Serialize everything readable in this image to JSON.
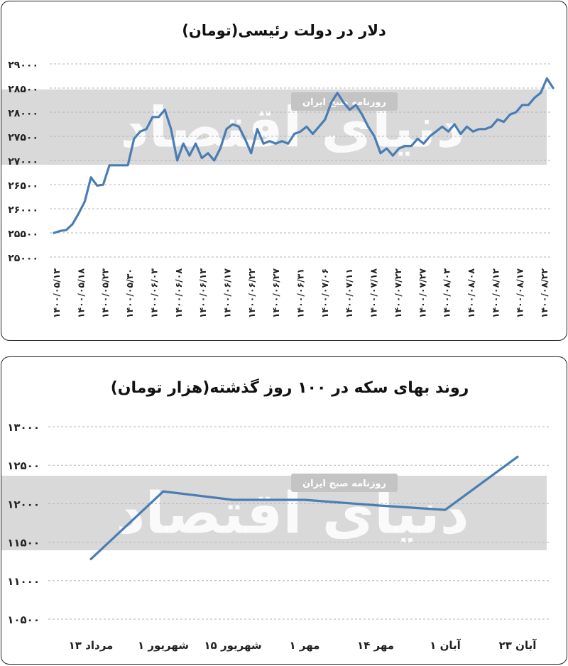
{
  "watermark": {
    "brand": "دنیای اقتصاد",
    "badge": "روزنامه صبح ایران"
  },
  "chart_data": [
    {
      "type": "line",
      "title": "دلار در دولت رئیسی(تومان)",
      "xlabel": "",
      "ylabel": "",
      "ylim": [
        25000,
        29000
      ],
      "y_ticks": [
        "۲۵۰۰۰",
        "۲۵۵۰۰",
        "۲۶۰۰۰",
        "۲۶۵۰۰",
        "۲۷۰۰۰",
        "۲۷۵۰۰",
        "۲۸۰۰۰",
        "۲۸۵۰۰",
        "۲۹۰۰۰"
      ],
      "x_ticks": [
        "۱۴۰۰/۰۵/۱۳",
        "۱۴۰۰/۰۵/۱۸",
        "۱۴۰۰/۰۵/۲۳",
        "۱۴۰۰/۰۵/۳۰",
        "۱۴۰۰/۰۶/۰۳",
        "۱۴۰۰/۰۶/۰۸",
        "۱۴۰۰/۰۶/۱۳",
        "۱۴۰۰/۰۶/۱۷",
        "۱۴۰۰/۰۶/۲۲",
        "۱۴۰۰/۰۶/۲۷",
        "۱۴۰۰/۰۶/۳۱",
        "۱۴۰۰/۰۷/۰۶",
        "۱۴۰۰/۰۷/۱۱",
        "۱۴۰۰/۰۷/۱۸",
        "۱۴۰۰/۰۷/۲۲",
        "۱۴۰۰/۰۷/۲۷",
        "۱۴۰۰/۰۸/۰۳",
        "۱۴۰۰/۰۸/۰۸",
        "۱۴۰۰/۰۸/۱۲",
        "۱۴۰۰/۰۸/۱۷",
        "۱۴۰۰/۰۸/۲۲"
      ],
      "values": [
        25500,
        25540,
        25560,
        25680,
        25900,
        26150,
        26650,
        26480,
        26500,
        26900,
        26900,
        26900,
        26900,
        27450,
        27600,
        27650,
        27900,
        27900,
        28050,
        27650,
        27000,
        27350,
        27100,
        27350,
        27050,
        27150,
        27000,
        27250,
        27650,
        27750,
        27700,
        27450,
        27150,
        27650,
        27350,
        27400,
        27350,
        27400,
        27350,
        27550,
        27600,
        27700,
        27550,
        27700,
        27850,
        28200,
        28400,
        28200,
        28050,
        28150,
        27950,
        27700,
        27500,
        27150,
        27250,
        27100,
        27250,
        27300,
        27300,
        27450,
        27350,
        27500,
        27600,
        27700,
        27600,
        27750,
        27550,
        27700,
        27600,
        27650,
        27650,
        27700,
        27850,
        27800,
        27950,
        28000,
        28150,
        28150,
        28300,
        28400,
        28700,
        28500
      ]
    },
    {
      "type": "line",
      "title": "روند بهای سکه در ۱۰۰ روز گذشته(هزار تومان)",
      "xlabel": "",
      "ylabel": "",
      "ylim": [
        10500,
        13000
      ],
      "y_ticks": [
        "۱۰۵۰۰",
        "۱۱۰۰۰",
        "۱۱۵۰۰",
        "۱۲۰۰۰",
        "۱۲۵۰۰",
        "۱۳۰۰۰"
      ],
      "categories": [
        "۱۳ مرداد",
        "۱ شهریور",
        "۱۵ شهریور",
        "۱ مهر",
        "۱۴ مهر",
        "۱ آبان",
        "۲۳ آبان"
      ],
      "values": [
        11280,
        12160,
        12050,
        12050,
        11980,
        11920,
        12610
      ]
    }
  ]
}
